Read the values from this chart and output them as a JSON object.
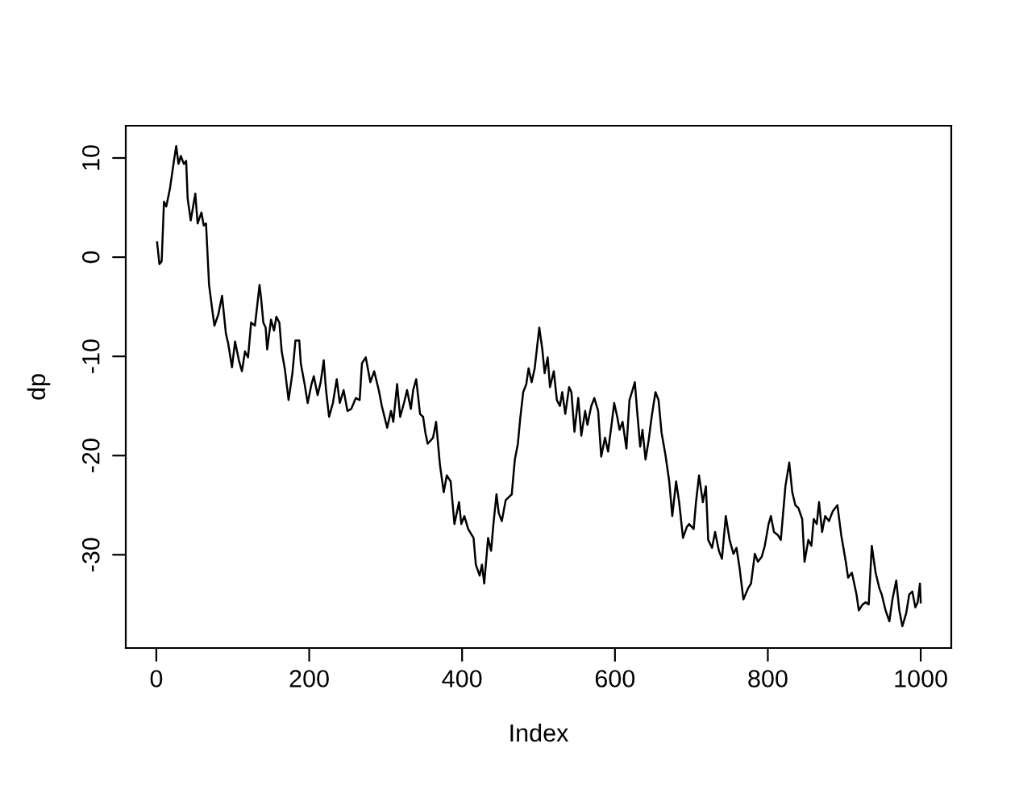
{
  "chart_data": {
    "type": "line",
    "xlabel": "Index",
    "ylabel": "dp",
    "xlim": [
      -40,
      1040
    ],
    "ylim": [
      -39.4,
      13.25
    ],
    "xticks": [
      0,
      200,
      400,
      600,
      800,
      1000
    ],
    "yticks": [
      -30,
      -20,
      -10,
      0,
      10
    ],
    "grid": false,
    "legend": false,
    "marker": "none",
    "line_style": "solid",
    "series": [
      {
        "color": "#000000",
        "x": [
          1,
          4,
          7,
          10,
          13,
          18,
          23,
          26,
          29,
          32,
          36,
          39,
          41,
          45,
          51,
          54,
          59,
          62,
          65,
          69,
          73,
          76,
          81,
          86,
          91,
          94,
          99,
          103,
          108,
          112,
          116,
          120,
          124,
          129,
          135,
          137,
          140,
          143,
          145,
          150,
          154,
          157,
          161,
          164,
          168,
          173,
          178,
          182,
          187,
          189,
          194,
          198,
          203,
          206,
          211,
          215,
          219,
          222,
          226,
          231,
          236,
          240,
          245,
          250,
          255,
          261,
          266,
          269,
          274,
          280,
          285,
          291,
          295,
          302,
          307,
          310,
          315,
          319,
          324,
          328,
          333,
          336,
          340,
          345,
          349,
          352,
          355,
          362,
          366,
          371,
          376,
          380,
          385,
          390,
          396,
          399,
          403,
          408,
          415,
          418,
          423,
          426,
          429,
          434,
          438,
          441,
          445,
          448,
          452,
          457,
          465,
          469,
          473,
          476,
          480,
          484,
          487,
          491,
          495,
          501,
          505,
          508,
          512,
          515,
          520,
          524,
          528,
          531,
          535,
          540,
          543,
          547,
          552,
          556,
          561,
          564,
          569,
          573,
          578,
          582,
          587,
          591,
          596,
          599,
          603,
          606,
          610,
          615,
          619,
          623,
          626,
          629,
          633,
          636,
          640,
          644,
          648,
          653,
          657,
          661,
          666,
          671,
          675,
          680,
          684,
          689,
          694,
          697,
          703,
          706,
          710,
          715,
          719,
          722,
          727,
          731,
          736,
          740,
          745,
          750,
          755,
          759,
          763,
          768,
          774,
          778,
          783,
          787,
          792,
          796,
          801,
          804,
          808,
          813,
          817,
          820,
          823,
          828,
          832,
          836,
          840,
          845,
          848,
          853,
          857,
          860,
          864,
          867,
          871,
          875,
          880,
          885,
          891,
          896,
          902,
          905,
          910,
          916,
          919,
          924,
          928,
          932,
          936,
          941,
          946,
          949,
          954,
          959,
          963,
          968,
          972,
          976,
          981,
          985,
          989,
          993,
          996,
          999,
          1000
        ],
        "values": [
          1.5,
          -0.7,
          -0.4,
          5.6,
          5.1,
          7.0,
          9.7,
          11.2,
          9.4,
          10.2,
          9.4,
          9.7,
          5.9,
          3.7,
          6.4,
          3.4,
          4.5,
          3.2,
          3.4,
          -2.8,
          -5.2,
          -6.9,
          -5.8,
          -3.9,
          -7.7,
          -8.7,
          -11.1,
          -8.5,
          -10.4,
          -11.5,
          -9.5,
          -10.1,
          -6.6,
          -6.9,
          -2.8,
          -4.1,
          -6.6,
          -7.1,
          -9.3,
          -6.3,
          -7.4,
          -6.0,
          -6.6,
          -9.5,
          -11.2,
          -14.4,
          -11.7,
          -8.4,
          -8.4,
          -10.7,
          -12.8,
          -14.7,
          -12.8,
          -12.0,
          -13.9,
          -12.6,
          -10.4,
          -13.4,
          -16.1,
          -14.7,
          -12.3,
          -14.7,
          -13.4,
          -15.5,
          -15.3,
          -14.2,
          -14.4,
          -10.7,
          -10.1,
          -12.6,
          -11.5,
          -13.4,
          -15.0,
          -17.2,
          -15.5,
          -16.6,
          -12.8,
          -16.1,
          -14.7,
          -13.4,
          -15.3,
          -13.4,
          -12.3,
          -15.8,
          -16.1,
          -17.7,
          -18.8,
          -18.2,
          -16.6,
          -20.9,
          -23.7,
          -22.0,
          -22.6,
          -26.9,
          -24.7,
          -26.9,
          -26.1,
          -27.4,
          -28.3,
          -31.0,
          -32.1,
          -31.0,
          -32.9,
          -28.3,
          -29.6,
          -26.9,
          -23.9,
          -25.8,
          -26.6,
          -24.5,
          -23.9,
          -20.4,
          -18.8,
          -16.3,
          -13.6,
          -12.8,
          -11.2,
          -12.6,
          -11.2,
          -7.1,
          -9.3,
          -11.7,
          -10.1,
          -13.1,
          -11.5,
          -14.4,
          -15.0,
          -13.6,
          -15.8,
          -13.1,
          -13.6,
          -17.6,
          -14.2,
          -18.0,
          -15.5,
          -16.9,
          -15.0,
          -14.2,
          -15.5,
          -20.1,
          -18.2,
          -19.6,
          -16.6,
          -14.7,
          -16.1,
          -17.4,
          -16.6,
          -19.3,
          -14.4,
          -13.4,
          -12.6,
          -15.5,
          -19.1,
          -17.4,
          -20.4,
          -18.5,
          -16.1,
          -13.6,
          -14.4,
          -17.7,
          -19.9,
          -22.6,
          -26.1,
          -22.6,
          -24.7,
          -28.3,
          -27.2,
          -26.9,
          -27.4,
          -24.7,
          -22.0,
          -24.7,
          -23.1,
          -28.5,
          -29.3,
          -27.7,
          -29.6,
          -30.4,
          -26.1,
          -28.5,
          -29.9,
          -29.3,
          -31.3,
          -34.5,
          -33.4,
          -32.9,
          -29.9,
          -30.7,
          -30.2,
          -29.1,
          -26.9,
          -26.1,
          -27.7,
          -28.0,
          -28.5,
          -25.8,
          -23.1,
          -20.7,
          -23.7,
          -25.0,
          -25.3,
          -26.4,
          -30.7,
          -28.5,
          -29.1,
          -26.4,
          -26.9,
          -24.7,
          -27.7,
          -26.1,
          -26.6,
          -25.6,
          -25.0,
          -28.0,
          -30.7,
          -32.3,
          -31.8,
          -34.0,
          -35.6,
          -35.0,
          -34.8,
          -35.0,
          -29.1,
          -31.8,
          -33.4,
          -34.0,
          -35.6,
          -36.7,
          -34.5,
          -32.6,
          -35.6,
          -37.2,
          -35.9,
          -34.0,
          -33.7,
          -35.3,
          -34.8,
          -32.9,
          -34.8
        ]
      }
    ]
  }
}
